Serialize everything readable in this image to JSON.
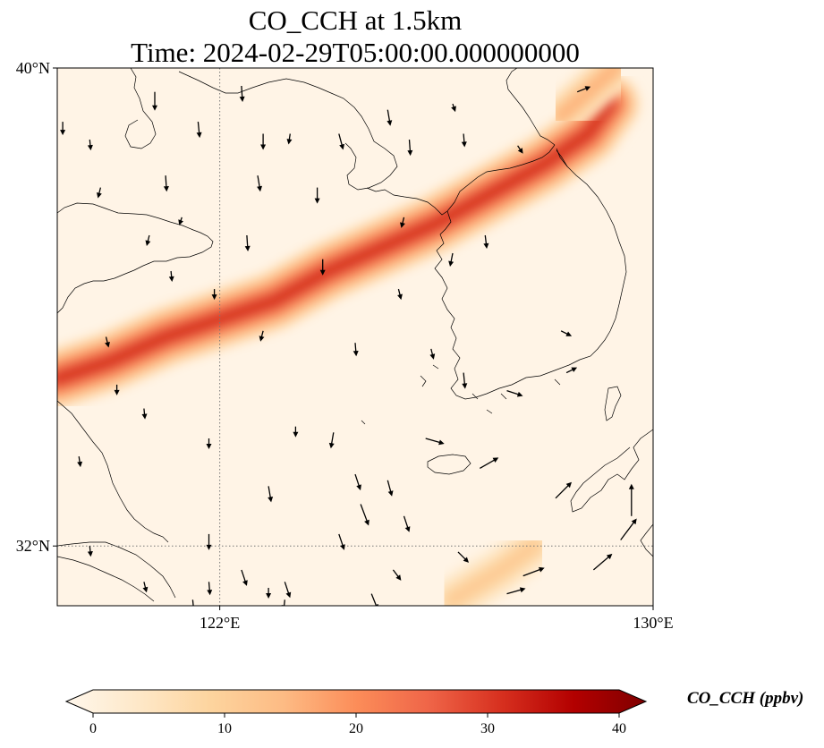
{
  "chart_data": {
    "type": "heatmap",
    "title": "CO_CCH at 1.5km",
    "subtitle": "Time: 2024-02-29T05:00:00.000000000",
    "extent": {
      "lon": [
        119,
        130
      ],
      "lat": [
        31,
        40
      ]
    },
    "x_ticks": [
      "122°E",
      "130°E"
    ],
    "x_tick_values": [
      122,
      130
    ],
    "y_ticks": [
      "40°N",
      "32°N"
    ],
    "y_tick_values": [
      40,
      32
    ],
    "gridlines": {
      "lon": [
        122
      ],
      "lat": [
        32
      ],
      "style": "dotted"
    },
    "colorbar": {
      "label": "CO_CCH (ppbv)",
      "min": 0,
      "max": 40,
      "ticks": [
        "0",
        "10",
        "20",
        "30",
        "40"
      ],
      "tick_values": [
        0,
        10,
        20,
        30,
        40
      ],
      "extend": "both",
      "colormap": "OrRd",
      "colors": [
        "#fff7ec",
        "#fee8c8",
        "#fdd49e",
        "#fdbb84",
        "#fc8d59",
        "#ef6548",
        "#d7301f",
        "#b30000",
        "#7f0000"
      ]
    },
    "plume_bands": [
      {
        "name": "",
        "centerline": [
          [
            119,
            34.8
          ],
          [
            120,
            35.1
          ],
          [
            121,
            35.5
          ],
          [
            122,
            35.8
          ],
          [
            123,
            36.1
          ],
          [
            124,
            36.6
          ],
          [
            125,
            37.0
          ],
          [
            126,
            37.4
          ],
          [
            127,
            37.9
          ],
          [
            128,
            38.4
          ],
          [
            128.8,
            38.9
          ],
          [
            129.2,
            39.4
          ]
        ],
        "peak": 30,
        "halfwidth_deg": 0.55
      },
      {
        "name": "",
        "centerline": [
          [
            126.3,
            31.1
          ],
          [
            127.2,
            31.6
          ],
          [
            127.8,
            32.0
          ]
        ],
        "peak": 12,
        "halfwidth_deg": 0.45
      },
      {
        "name": "",
        "centerline": [
          [
            128.3,
            39.2
          ],
          [
            128.8,
            39.6
          ],
          [
            129.3,
            40.0
          ]
        ],
        "peak": 16,
        "halfwidth_deg": 0.4
      }
    ],
    "wind_vectors": [
      [
        120.8,
        39.6,
        0,
        -0.35
      ],
      [
        122.4,
        39.7,
        0.02,
        -0.3
      ],
      [
        119.1,
        39.1,
        0,
        -0.25
      ],
      [
        119.6,
        38.8,
        0.02,
        -0.2
      ],
      [
        121.6,
        39.1,
        0.03,
        -0.3
      ],
      [
        122.8,
        38.9,
        0,
        -0.3
      ],
      [
        125.1,
        39.3,
        0.05,
        -0.3
      ],
      [
        124.2,
        38.9,
        0.08,
        -0.3
      ],
      [
        125.5,
        38.8,
        0.02,
        -0.3
      ],
      [
        126.5,
        38.9,
        0.02,
        -0.25
      ],
      [
        121.0,
        38.2,
        0.02,
        -0.3
      ],
      [
        122.7,
        38.2,
        0.05,
        -0.3
      ],
      [
        123.8,
        38.0,
        0,
        -0.3
      ],
      [
        119.8,
        38.0,
        -0.05,
        -0.2
      ],
      [
        120.7,
        37.2,
        -0.05,
        -0.2
      ],
      [
        121.3,
        37.5,
        -0.05,
        -0.15
      ],
      [
        122.5,
        37.2,
        0.02,
        -0.3
      ],
      [
        123.9,
        36.8,
        0,
        -0.3
      ],
      [
        125.4,
        37.5,
        -0.05,
        -0.2
      ],
      [
        126.3,
        36.9,
        -0.05,
        -0.25
      ],
      [
        121.1,
        36.6,
        0.02,
        -0.2
      ],
      [
        121.9,
        36.3,
        0,
        -0.2
      ],
      [
        122.8,
        35.6,
        -0.05,
        -0.2
      ],
      [
        124.5,
        35.4,
        0.02,
        -0.25
      ],
      [
        125.9,
        35.3,
        0.05,
        -0.2
      ],
      [
        126.5,
        34.9,
        0.03,
        -0.3
      ],
      [
        120.1,
        34.7,
        0,
        -0.2
      ],
      [
        120.6,
        34.3,
        0.02,
        -0.2
      ],
      [
        121.8,
        33.8,
        0,
        -0.2
      ],
      [
        123.4,
        34.0,
        0,
        -0.2
      ],
      [
        124.1,
        33.9,
        -0.05,
        -0.3
      ],
      [
        125.1,
        33.1,
        0.08,
        -0.3
      ],
      [
        119.4,
        33.5,
        0.03,
        -0.2
      ],
      [
        122.9,
        33.0,
        0.05,
        -0.3
      ],
      [
        124.6,
        32.7,
        0.15,
        -0.4
      ],
      [
        124.2,
        32.2,
        0.1,
        -0.3
      ],
      [
        125.4,
        32.5,
        0.1,
        -0.3
      ],
      [
        126.4,
        31.9,
        0.2,
        -0.2
      ],
      [
        121.8,
        32.2,
        0,
        -0.3
      ],
      [
        122.4,
        31.6,
        0.1,
        -0.3
      ],
      [
        123.2,
        31.4,
        0.1,
        -0.3
      ],
      [
        124.8,
        31.2,
        0.12,
        -0.3
      ],
      [
        125.2,
        31.6,
        0.15,
        -0.2
      ],
      [
        126.6,
        31.0,
        0.3,
        -0.1
      ],
      [
        127.3,
        31.2,
        0.35,
        0.1
      ],
      [
        127.6,
        31.5,
        0.4,
        0.15
      ],
      [
        128.9,
        31.6,
        0.35,
        0.3
      ],
      [
        129.4,
        32.1,
        0.3,
        0.4
      ],
      [
        128.2,
        32.8,
        0.3,
        0.3
      ],
      [
        129.6,
        32.5,
        0,
        0.6
      ],
      [
        126.8,
        33.3,
        0.35,
        0.2
      ],
      [
        125.8,
        33.8,
        0.35,
        -0.1
      ],
      [
        127.3,
        34.6,
        0.3,
        -0.1
      ],
      [
        128.3,
        35.6,
        0.2,
        -0.1
      ],
      [
        128.4,
        34.9,
        0.2,
        0.1
      ],
      [
        126.9,
        37.2,
        0.03,
        -0.25
      ],
      [
        127.5,
        38.7,
        0.1,
        -0.15
      ],
      [
        128.6,
        39.6,
        0.25,
        0.1
      ],
      [
        126.3,
        39.4,
        0.05,
        -0.15
      ],
      [
        125.3,
        36.3,
        0.05,
        -0.2
      ],
      [
        123.3,
        38.9,
        -0.03,
        -0.2
      ],
      [
        119.9,
        35.5,
        0.05,
        -0.2
      ],
      [
        120.6,
        31.4,
        0.05,
        -0.2
      ],
      [
        121.5,
        31.1,
        0.03,
        -0.3
      ],
      [
        121.8,
        31.4,
        0.02,
        -0.25
      ],
      [
        122.9,
        31.3,
        0,
        -0.2
      ],
      [
        123.2,
        31.1,
        -0.02,
        -0.2
      ],
      [
        124.5,
        33.2,
        0.1,
        -0.3
      ],
      [
        119.6,
        32.0,
        0.02,
        -0.2
      ]
    ]
  }
}
